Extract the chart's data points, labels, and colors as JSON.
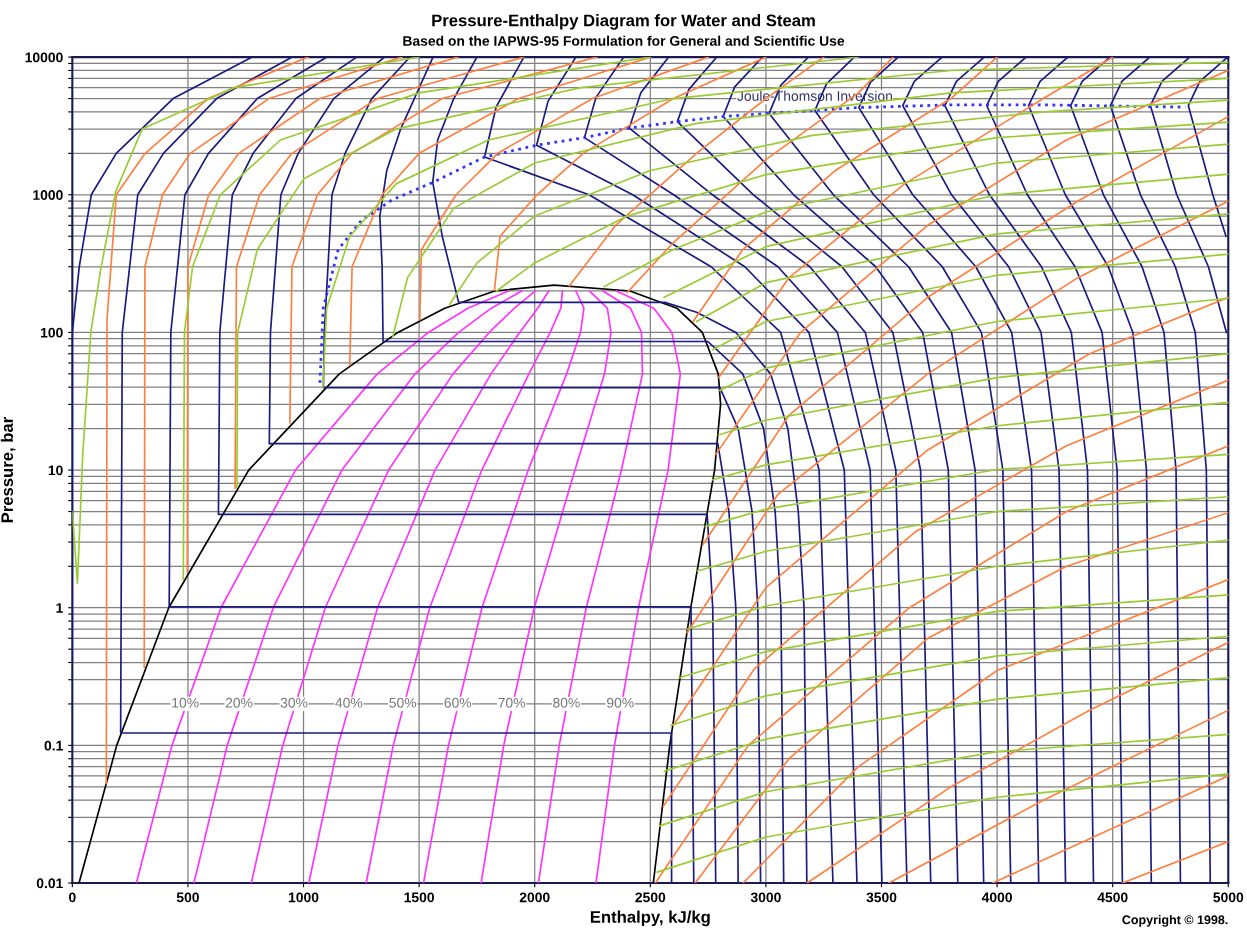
{
  "chart_data": {
    "type": "line",
    "title": "Pressure-Enthalpy Diagram for Water and Steam",
    "subtitle": "Based on the IAPWS-95 Formulation for General and Scientific Use",
    "xlabel": "Enthalpy, kJ/kg",
    "ylabel": "Pressure, bar",
    "log": "y",
    "grid": true,
    "xlim": [
      0,
      5000
    ],
    "xticks": [
      0,
      500,
      1000,
      1500,
      2000,
      2500,
      3000,
      3500,
      4000,
      4500,
      5000
    ],
    "ylim": [
      0.01,
      10000
    ],
    "yticks": [
      0.01,
      {
        "value": 0.02,
        "label": null
      },
      {
        "value": 0.03,
        "label": null
      },
      {
        "value": 0.04,
        "label": null
      },
      {
        "value": 0.05,
        "label": null
      },
      {
        "value": 0.06,
        "label": null
      },
      {
        "value": 0.07,
        "label": null
      },
      {
        "value": 0.08,
        "label": null
      },
      {
        "value": 0.09,
        "label": null
      },
      0.1,
      {
        "value": 0.2,
        "label": null
      },
      {
        "value": 0.3,
        "label": null
      },
      {
        "value": 0.4,
        "label": null
      },
      {
        "value": 0.5,
        "label": null
      },
      {
        "value": 0.6,
        "label": null
      },
      {
        "value": 0.7,
        "label": null
      },
      {
        "value": 0.8,
        "label": null
      },
      {
        "value": 0.9,
        "label": null
      },
      1,
      {
        "value": 2,
        "label": null
      },
      {
        "value": 3,
        "label": null
      },
      {
        "value": 4,
        "label": null
      },
      {
        "value": 5,
        "label": null
      },
      {
        "value": 6,
        "label": null
      },
      {
        "value": 7,
        "label": null
      },
      {
        "value": 8,
        "label": null
      },
      {
        "value": 9,
        "label": null
      },
      10,
      {
        "value": 20,
        "label": null
      },
      {
        "value": 30,
        "label": null
      },
      {
        "value": 40,
        "label": null
      },
      {
        "value": 50,
        "label": null
      },
      {
        "value": 60,
        "label": null
      },
      {
        "value": 70,
        "label": null
      },
      {
        "value": 80,
        "label": null
      },
      {
        "value": 90,
        "label": null
      },
      100,
      {
        "value": 200,
        "label": null
      },
      {
        "value": 300,
        "label": null
      },
      {
        "value": 400,
        "label": null
      },
      {
        "value": 500,
        "label": null
      },
      {
        "value": 600,
        "label": null
      },
      {
        "value": 700,
        "label": null
      },
      {
        "value": 800,
        "label": null
      },
      {
        "value": 900,
        "label": null
      },
      1000,
      {
        "value": 2000,
        "label": null
      },
      {
        "value": 3000,
        "label": null
      },
      {
        "value": 4000,
        "label": null
      },
      {
        "value": 5000,
        "label": null
      },
      {
        "value": 6000,
        "label": null
      },
      {
        "value": 7000,
        "label": null
      },
      {
        "value": 8000,
        "label": null
      },
      {
        "value": 9000,
        "label": null
      },
      10000
    ],
    "series": [
      {
        "color": "#000000",
        "x": [
          29,
          192,
          417,
          763,
          1155,
          1408,
          1611,
          1827,
          2084,
          2412,
          2615,
          2725,
          2794,
          2804,
          2778,
          2675,
          2584,
          2513
        ],
        "values": [
          0.01,
          0.1,
          1,
          10,
          50,
          100,
          150,
          200,
          220.6,
          200,
          150,
          100,
          50,
          30,
          10,
          1,
          0.1,
          0.01
        ]
      },
      {
        "color": "#ff33ff",
        "x": [
          277,
          431,
          643,
          965,
          1319,
          1540,
          1711,
          1886
        ],
        "values": [
          0.01,
          0.1,
          1,
          10,
          50,
          100,
          150,
          200
        ]
      },
      {
        "color": "#ff33ff",
        "x": [
          526,
          670,
          869,
          1166,
          1483,
          1671,
          1812,
          1944
        ],
        "values": [
          0.01,
          0.1,
          1,
          10,
          50,
          100,
          150,
          200
        ]
      },
      {
        "color": "#ff33ff",
        "x": [
          774,
          910,
          1094,
          1368,
          1647,
          1803,
          1912,
          2003
        ],
        "values": [
          0.01,
          0.1,
          1,
          10,
          50,
          100,
          150,
          200
        ]
      },
      {
        "color": "#ff33ff",
        "x": [
          1023,
          1149,
          1320,
          1569,
          1811,
          1935,
          2013,
          2061
        ],
        "values": [
          0.01,
          0.1,
          1,
          10,
          50,
          100,
          150,
          200
        ]
      },
      {
        "color": "#ff33ff",
        "x": [
          1271,
          1388,
          1546,
          1771,
          1975,
          2067,
          2113,
          2120
        ],
        "values": [
          0.01,
          0.1,
          1,
          10,
          50,
          100,
          150,
          200
        ]
      },
      {
        "color": "#ff33ff",
        "x": [
          1519,
          1627,
          1772,
          1972,
          2138,
          2198,
          2213,
          2178
        ],
        "values": [
          0.01,
          0.1,
          1,
          10,
          50,
          100,
          150,
          200
        ]
      },
      {
        "color": "#ff33ff",
        "x": [
          1768,
          1866,
          1998,
          2174,
          2302,
          2330,
          2314,
          2237
        ],
        "values": [
          0.01,
          0.1,
          1,
          10,
          50,
          100,
          150,
          200
        ]
      },
      {
        "color": "#ff33ff",
        "x": [
          2016,
          2106,
          2223,
          2375,
          2466,
          2462,
          2414,
          2295
        ],
        "values": [
          0.01,
          0.1,
          1,
          10,
          50,
          100,
          150,
          200
        ]
      },
      {
        "color": "#ff33ff",
        "x": [
          2265,
          2345,
          2449,
          2577,
          2630,
          2593,
          2515,
          2354
        ],
        "values": [
          0.01,
          0.1,
          1,
          10,
          50,
          100,
          150,
          200
        ]
      },
      {
        "color": "#1a1a80",
        "x": [
          0,
          0,
          30,
          82,
          190,
          436,
          777
        ],
        "values": [
          0.4,
          100,
          300,
          1000,
          2000,
          5000,
          10000
        ]
      },
      {
        "color": "#1a1a80",
        "x": [
          2592,
          2592,
          209,
          216,
          283,
          394,
          624,
          950
        ],
        "values": [
          0.01,
          0.123,
          0.123,
          100,
          1000,
          2000,
          5000,
          10000
        ]
      },
      {
        "color": "#1a1a80",
        "x": [
          2688,
          2676,
          419,
          426,
          487,
          589,
          800,
          1100
        ],
        "values": [
          0.01,
          1.014,
          1.014,
          100,
          1000,
          2000,
          5000,
          10000
        ]
      },
      {
        "color": "#1a1a80",
        "x": [
          2783,
          2770,
          2746,
          632,
          638,
          692,
          782,
          967,
          1230
        ],
        "values": [
          0.01,
          1,
          4.76,
          4.76,
          100,
          1000,
          2000,
          5000,
          10000
        ]
      },
      {
        "color": "#1a1a80",
        "x": [
          2880,
          2870,
          2840,
          2792,
          852,
          857,
          902,
          977,
          1131,
          1350
        ],
        "values": [
          0.01,
          1,
          5,
          15.55,
          15.55,
          100,
          1000,
          2000,
          5000,
          10000
        ]
      },
      {
        "color": "#1a1a80",
        "x": [
          2977,
          2965,
          2940,
          2880,
          2801,
          1086,
          1090,
          1123,
          1180,
          1295,
          1460
        ],
        "values": [
          0.01,
          1,
          5,
          20,
          39.7,
          39.7,
          100,
          1000,
          2000,
          5000,
          10000
        ]
      },
      {
        "color": "#1a1a80",
        "x": [
          3077,
          3065,
          3040,
          2990,
          2900,
          2749,
          1344,
          1340,
          1330,
          1360,
          1420,
          1560
        ],
        "values": [
          0.01,
          1,
          5,
          20,
          50,
          85.9,
          85.9,
          300,
          700,
          1500,
          3000,
          10000
        ]
      },
      {
        "color": "#1a1a80",
        "x": [
          3177,
          3165,
          3140,
          3095,
          3020,
          2870,
          2700,
          2563,
          1671,
          1600,
          1559,
          1580,
          1650,
          1750
        ],
        "values": [
          0.01,
          1,
          5,
          20,
          50,
          100,
          140,
          165.3,
          165.3,
          500,
          1230,
          2500,
          5000,
          10000
        ]
      },
      {
        "color": "#1a1a80",
        "x": [
          3290,
          3230,
          3064,
          2763,
          2235,
          1783,
          1833,
          1953
        ],
        "values": [
          0.01,
          10,
          100,
          300,
          1000,
          1880,
          4340,
          10000
        ]
      },
      {
        "color": "#1a1a80",
        "x": [
          3394,
          3339,
          3186,
          2909,
          2424,
          2008,
          2058,
          2178
        ],
        "values": [
          0.01,
          10,
          100,
          300,
          1000,
          2290,
          4790,
          10000
        ]
      },
      {
        "color": "#1a1a80",
        "x": [
          3502,
          3451,
          3309,
          3052,
          2601,
          2215,
          2265,
          2385
        ],
        "values": [
          0.01,
          10,
          100,
          300,
          1000,
          2600,
          5100,
          10000
        ]
      },
      {
        "color": "#1a1a80",
        "x": [
          3610,
          3562,
          3430,
          3190,
          2769,
          2409,
          2459,
          2579
        ],
        "values": [
          0.01,
          10,
          100,
          300,
          1000,
          3050,
          5520,
          10000
        ]
      },
      {
        "color": "#1a1a80",
        "x": [
          3713,
          3669,
          3549,
          3329,
          2946,
          2617,
          2667,
          2787
        ],
        "values": [
          0.01,
          10,
          100,
          300,
          1000,
          3400,
          5830,
          10000
        ]
      },
      {
        "color": "#1a1a80",
        "x": [
          3830,
          3789,
          3678,
          3475,
          3120,
          2815,
          2865,
          2985
        ],
        "values": [
          0.01,
          10,
          100,
          300,
          1000,
          3700,
          6080,
          10000
        ]
      },
      {
        "color": "#1a1a80",
        "x": [
          3942,
          3905,
          3803,
          3617,
          3292,
          3014,
          3064,
          3184
        ],
        "values": [
          0.01,
          10,
          100,
          300,
          1000,
          3900,
          6240,
          10000
        ]
      },
      {
        "color": "#1a1a80",
        "x": [
          4059,
          4025,
          3932,
          3763,
          3466,
          3212,
          3262,
          3382
        ],
        "values": [
          0.01,
          10,
          100,
          300,
          1000,
          4100,
          6400,
          10000
        ]
      },
      {
        "color": "#1a1a80",
        "x": [
          4180,
          4149,
          4063,
          3908,
          3635,
          3402,
          3452,
          3572
        ],
        "values": [
          0.01,
          10,
          100,
          300,
          1000,
          4300,
          6560,
          10000
        ]
      },
      {
        "color": "#1a1a80",
        "x": [
          4296,
          4268,
          4190,
          4050,
          3803,
          3592,
          3642,
          3762
        ],
        "values": [
          0.01,
          10,
          100,
          300,
          1000,
          4450,
          6670,
          10000
        ]
      },
      {
        "color": "#1a1a80",
        "x": [
          4417,
          4391,
          4321,
          4192,
          3967,
          3774,
          3824,
          3944
        ],
        "values": [
          0.01,
          10,
          100,
          300,
          1000,
          4450,
          6670,
          10000
        ]
      },
      {
        "color": "#1a1a80",
        "x": [
          4542,
          4519,
          4454,
          4337,
          4131,
          3955,
          4005,
          4125
        ],
        "values": [
          0.01,
          10,
          100,
          300,
          1000,
          4450,
          6670,
          10000
        ]
      },
      {
        "color": "#1a1a80",
        "x": [
          4667,
          4646,
          4587,
          4481,
          4295,
          4136,
          4186,
          4306
        ],
        "values": [
          0.01,
          10,
          100,
          300,
          1000,
          4450,
          6670,
          10000
        ]
      },
      {
        "color": "#1a1a80",
        "x": [
          4793,
          4774,
          4722,
          4627,
          4460,
          4318,
          4368,
          4488
        ],
        "values": [
          0.01,
          10,
          100,
          300,
          1000,
          4450,
          6670,
          10000
        ]
      },
      {
        "color": "#1a1a80",
        "x": [
          4922,
          4905,
          4857,
          4771,
          4620,
          4490,
          4540,
          4660
        ],
        "values": [
          0.01,
          10,
          100,
          300,
          1000,
          4450,
          6670,
          10000
        ]
      },
      {
        "color": "#1a1a80",
        "x": [
          4992,
          4914,
          4777,
          4663,
          4713,
          4833
        ],
        "values": [
          100,
          300,
          1000,
          4450,
          6670,
          10000
        ]
      },
      {
        "color": "#1a1a80",
        "x": [
          4990,
          4933,
          4827,
          4877,
          4997
        ],
        "values": [
          500,
          1000,
          4450,
          6670,
          10000
        ]
      },
      {
        "name": "Joule-Thomson Inversion",
        "color": "#3333ff",
        "line_style": "dotted",
        "x": [
          1071,
          1085,
          1150,
          1250,
          1382,
          1559,
          1783,
          2008,
          2215,
          2409,
          2617,
          2815,
          3014,
          3212,
          3402,
          3800,
          4200,
          4814
        ],
        "values": [
          43,
          150,
          400,
          650,
          916,
          1230,
          1880,
          2290,
          2600,
          3050,
          3400,
          3700,
          3900,
          4100,
          4300,
          4500,
          4500,
          4335
        ]
      },
      {
        "color": "#ff7f3f",
        "x": [
          147,
          150,
          190,
          315,
          587,
          1019
        ],
        "values": [
          0.053,
          124,
          1000,
          2000,
          5000,
          10000
        ]
      },
      {
        "color": "#ff7f3f",
        "x": [
          311,
          314,
          390,
          510,
          850,
          1425
        ],
        "values": [
          0.37,
          300,
          1000,
          2000,
          5000,
          10000
        ]
      },
      {
        "color": "#ff7f3f",
        "x": [
          497,
          500,
          590,
          720,
          1070,
          1667
        ],
        "values": [
          1.83,
          300,
          1000,
          2000,
          5000,
          10000
        ]
      },
      {
        "color": "#ff7f3f",
        "x": [
          704,
          710,
          810,
          950,
          1320,
          1952
        ],
        "values": [
          7.4,
          300,
          1000,
          2000,
          5000,
          10000
        ]
      },
      {
        "color": "#ff7f3f",
        "x": [
          941,
          950,
          1060,
          1210,
          1600,
          2267
        ],
        "values": [
          22,
          300,
          1000,
          2000,
          5000,
          10000
        ]
      },
      {
        "color": "#ff7f3f",
        "x": [
          1200,
          1210,
          1340,
          1500,
          1930,
          2500
        ],
        "values": [
          58,
          300,
          1000,
          2000,
          5000,
          10000
        ]
      },
      {
        "color": "#ff7f3f",
        "x": [
          1503,
          1510,
          1660,
          1840,
          2250,
          2750
        ],
        "values": [
          124,
          400,
          1000,
          2000,
          5000,
          10000
        ]
      },
      {
        "color": "#ff7f3f",
        "x": [
          1826,
          1850,
          2010,
          2210,
          2600,
          3000
        ],
        "values": [
          203,
          500,
          1000,
          2000,
          5000,
          10000
        ]
      },
      {
        "color": "#ff7f3f",
        "x": [
          2150,
          2350,
          2700,
          3000,
          3250
        ],
        "values": [
          218,
          600,
          2000,
          5000,
          10000
        ]
      },
      {
        "color": "#ff7f3f",
        "x": [
          2400,
          2600,
          3000,
          3400,
          3550
        ],
        "values": [
          195,
          450,
          1800,
          5500,
          10000
        ]
      },
      {
        "color": "#ff7f3f",
        "x": [
          2685,
          2900,
          3300,
          3800,
          4000
        ],
        "values": [
          120,
          400,
          1500,
          5000,
          10000
        ]
      },
      {
        "color": "#ff7f3f",
        "x": [
          2796,
          3100,
          3600,
          4200,
          4500
        ],
        "values": [
          47,
          250,
          1200,
          5000,
          10000
        ]
      },
      {
        "color": "#ff7f3f",
        "x": [
          2783,
          3150,
          3700,
          4300,
          5000
        ],
        "values": [
          13,
          100,
          600,
          2500,
          8000
        ]
      },
      {
        "color": "#ff7f3f",
        "x": [
          2729,
          3100,
          3700,
          4350,
          5000
        ],
        "values": [
          2.9,
          25,
          180,
          900,
          3700
        ]
      },
      {
        "color": "#ff7f3f",
        "x": [
          2660,
          3050,
          3700,
          4350,
          5000
        ],
        "values": [
          0.66,
          6.6,
          50,
          250,
          900
        ]
      },
      {
        "color": "#ff7f3f",
        "x": [
          2600,
          3000,
          3700,
          4400,
          5000
        ],
        "values": [
          0.14,
          1.4,
          14,
          70,
          180
        ]
      },
      {
        "color": "#ff7f3f",
        "x": [
          2556,
          2950,
          3650,
          4300,
          5000
        ],
        "values": [
          0.036,
          0.36,
          3.6,
          15,
          45
        ]
      },
      {
        "color": "#ff7f3f",
        "x": [
          2522,
          2924,
          3621,
          4300,
          5000
        ],
        "values": [
          0.01,
          0.1,
          1,
          5,
          15
        ]
      },
      {
        "color": "#ff7f3f",
        "x": [
          2694,
          3100,
          3700,
          4300,
          5000
        ],
        "values": [
          0.01,
          0.08,
          0.6,
          2,
          4.9
        ]
      },
      {
        "color": "#ff7f3f",
        "x": [
          2901,
          3400,
          4000,
          5000
        ],
        "values": [
          0.01,
          0.07,
          0.35,
          1.6
        ]
      },
      {
        "color": "#ff7f3f",
        "x": [
          3178,
          3800,
          4400,
          5000
        ],
        "values": [
          0.01,
          0.05,
          0.18,
          0.56
        ]
      },
      {
        "color": "#ff7f3f",
        "x": [
          3532,
          4200,
          5000
        ],
        "values": [
          0.01,
          0.04,
          0.18
        ]
      },
      {
        "color": "#ff7f3f",
        "x": [
          3981,
          4500,
          5000
        ],
        "values": [
          0.01,
          0.025,
          0.06
        ]
      },
      {
        "color": "#ff7f3f",
        "x": [
          4542,
          5000
        ],
        "values": [
          0.01,
          0.02
        ]
      },
      {
        "color": "#99cc33",
        "x": [
          0,
          22,
          35,
          45,
          80,
          123,
          187,
          302,
          700,
          1500
        ],
        "values": [
          5,
          1.5,
          5,
          13,
          100,
          288,
          1050,
          3000,
          6000,
          10000
        ]
      },
      {
        "color": "#99cc33",
        "x": [
          480,
          485,
          520,
          640,
          900,
          1500,
          2500
        ],
        "values": [
          1.6,
          100,
          300,
          1000,
          2500,
          5500,
          10000
        ]
      },
      {
        "color": "#99cc33",
        "x": [
          712,
          715,
          800,
          1000,
          1400,
          2200,
          3400
        ],
        "values": [
          7.5,
          100,
          400,
          1300,
          3000,
          6000,
          10000
        ]
      },
      {
        "color": "#99cc33",
        "x": [
          1084,
          1100,
          1200,
          1400,
          1800,
          2600,
          3800,
          5000
        ],
        "values": [
          40,
          150,
          500,
          1200,
          2500,
          5000,
          8000,
          9200
        ]
      },
      {
        "color": "#99cc33",
        "x": [
          1386,
          1450,
          1650,
          2000,
          2700,
          3800,
          5000
        ],
        "values": [
          93,
          250,
          800,
          1700,
          3300,
          5500,
          7000
        ]
      },
      {
        "color": "#99cc33",
        "x": [
          1632,
          1750,
          2000,
          2500,
          3200,
          4200,
          5000
        ],
        "values": [
          160,
          320,
          700,
          1500,
          2700,
          4000,
          4870
        ]
      },
      {
        "color": "#99cc33",
        "x": [
          1835,
          2000,
          2400,
          3000,
          4000,
          5000
        ],
        "values": [
          200,
          320,
          700,
          1400,
          2600,
          3370
        ]
      },
      {
        "color": "#99cc33",
        "x": [
          2300,
          2600,
          3000,
          4000,
          5000
        ],
        "values": [
          215,
          400,
          750,
          1700,
          2330
        ]
      },
      {
        "color": "#99cc33",
        "x": [
          2560,
          3000,
          4000,
          5000
        ],
        "values": [
          180,
          420,
          1000,
          1410
        ]
      },
      {
        "color": "#99cc33",
        "x": [
          2700,
          3000,
          4000,
          5000
        ],
        "values": [
          120,
          230,
          520,
          725
        ]
      },
      {
        "color": "#99cc33",
        "x": [
          2770,
          3000,
          4000,
          5000
        ],
        "values": [
          75,
          120,
          260,
          370
        ]
      },
      {
        "color": "#99cc33",
        "x": [
          2801,
          3000,
          4000,
          5000
        ],
        "values": [
          38,
          55,
          120,
          177
        ]
      },
      {
        "color": "#99cc33",
        "x": [
          2795,
          3000,
          4000,
          5000
        ],
        "values": [
          18,
          23,
          47,
          70
        ]
      },
      {
        "color": "#99cc33",
        "x": [
          2770,
          3000,
          4000,
          5000
        ],
        "values": [
          8.5,
          10.9,
          21,
          31
        ]
      },
      {
        "color": "#99cc33",
        "x": [
          2738,
          3000,
          4000,
          5000
        ],
        "values": [
          3.9,
          5.2,
          10.1,
          13
        ]
      },
      {
        "color": "#99cc33",
        "x": [
          2704,
          3000,
          4000,
          5000
        ],
        "values": [
          1.85,
          2.57,
          5,
          6.4
        ]
      },
      {
        "color": "#99cc33",
        "x": [
          2660,
          3000,
          4000,
          5000
        ],
        "values": [
          0.7,
          1.03,
          2,
          3.1
        ]
      },
      {
        "color": "#99cc33",
        "x": [
          2625,
          3000,
          4000,
          5000
        ],
        "values": [
          0.31,
          0.48,
          0.94,
          1.24
        ]
      },
      {
        "color": "#99cc33",
        "x": [
          2590,
          3000,
          4000,
          5000
        ],
        "values": [
          0.14,
          0.229,
          0.447,
          0.62
        ]
      },
      {
        "color": "#99cc33",
        "x": [
          2561,
          3000,
          4000,
          5000
        ],
        "values": [
          0.065,
          0.111,
          0.217,
          0.31
        ]
      },
      {
        "color": "#99cc33",
        "x": [
          2540,
          3000,
          4000,
          5000
        ],
        "values": [
          0.026,
          0.046,
          0.09,
          0.12
        ]
      },
      {
        "color": "#99cc33",
        "x": [
          2530,
          3000,
          4000,
          5000
        ],
        "values": [
          0.012,
          0.0216,
          0.042,
          0.062
        ]
      }
    ],
    "annotations": [
      {
        "text": "10%",
        "x": 488,
        "y": 0.2
      },
      {
        "text": "20%",
        "x": 721,
        "y": 0.2
      },
      {
        "text": "30%",
        "x": 959,
        "y": 0.2
      },
      {
        "text": "40%",
        "x": 1196,
        "y": 0.2
      },
      {
        "text": "50%",
        "x": 1429,
        "y": 0.2
      },
      {
        "text": "60%",
        "x": 1667,
        "y": 0.2
      },
      {
        "text": "70%",
        "x": 1900,
        "y": 0.2
      },
      {
        "text": "80%",
        "x": 2137,
        "y": 0.2
      },
      {
        "text": "90%",
        "x": 2370,
        "y": 0.2
      },
      "Copyright © 1998."
    ]
  }
}
